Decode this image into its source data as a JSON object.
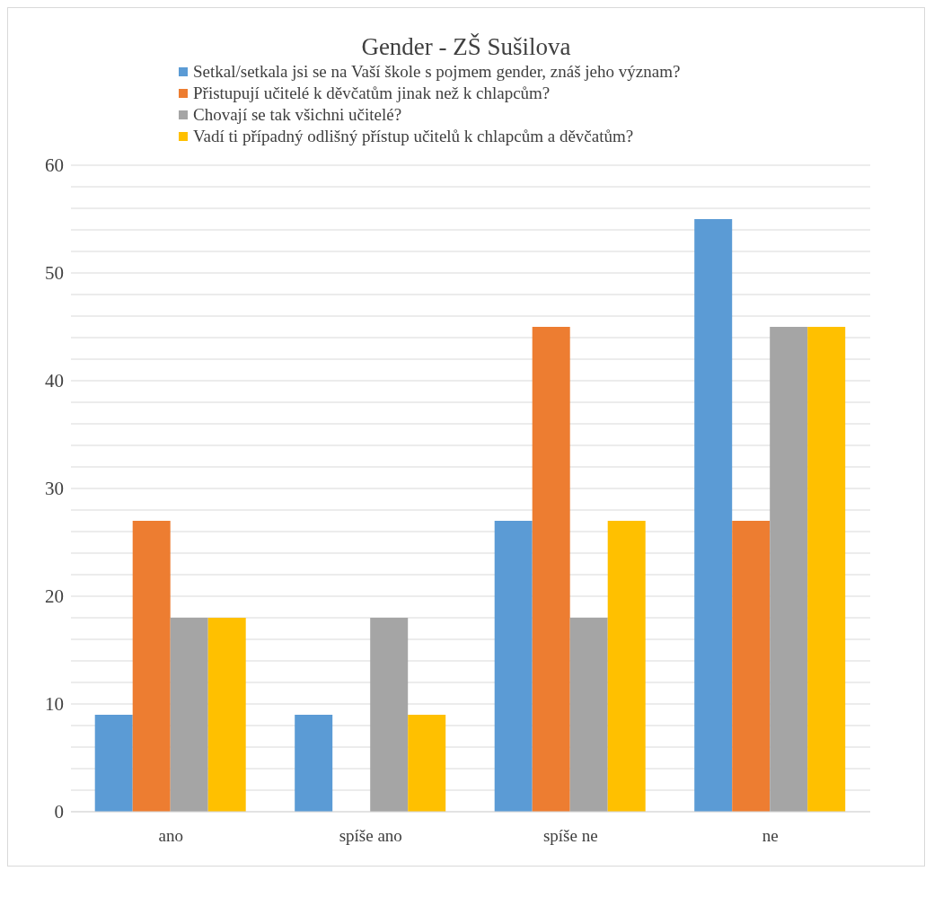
{
  "chart_data": {
    "type": "bar",
    "title": "Gender - ZŠ Sušilova",
    "categories": [
      "ano",
      "spíše ano",
      "spíše ne",
      "ne"
    ],
    "series": [
      {
        "name": "Setkal/setkala jsi se na Vaší škole s pojmem gender, znáš jeho význam?",
        "color": "#5b9bd5",
        "values": [
          9,
          9,
          27,
          55
        ]
      },
      {
        "name": "Přistupují učitelé k děvčatům jinak než k chlapcům?",
        "color": "#ed7d31",
        "values": [
          27,
          0,
          45,
          27
        ]
      },
      {
        "name": "Chovají se tak všichni učitelé?",
        "color": "#a5a5a5",
        "values": [
          18,
          18,
          18,
          45
        ]
      },
      {
        "name": "Vadí ti případný odlišný přístup učitelů k chlapcům a děvčatům?",
        "color": "#ffc000",
        "values": [
          18,
          9,
          27,
          45
        ]
      }
    ],
    "ylim": [
      0,
      60
    ],
    "yticks": [
      0,
      {
        "value": 2,
        "label": null
      },
      {
        "value": 4,
        "label": null
      },
      {
        "value": 6,
        "label": null
      },
      {
        "value": 8,
        "label": null
      },
      10,
      {
        "value": 12,
        "label": null
      },
      {
        "value": 14,
        "label": null
      },
      {
        "value": 16,
        "label": null
      },
      {
        "value": 18,
        "label": null
      },
      20,
      {
        "value": 22,
        "label": null
      },
      {
        "value": 24,
        "label": null
      },
      {
        "value": 26,
        "label": null
      },
      {
        "value": 28,
        "label": null
      },
      30,
      {
        "value": 32,
        "label": null
      },
      {
        "value": 34,
        "label": null
      },
      {
        "value": 36,
        "label": null
      },
      {
        "value": 38,
        "label": null
      },
      40,
      {
        "value": 42,
        "label": null
      },
      {
        "value": 44,
        "label": null
      },
      {
        "value": 46,
        "label": null
      },
      {
        "value": 48,
        "label": null
      },
      50,
      {
        "value": 52,
        "label": null
      },
      {
        "value": 54,
        "label": null
      },
      {
        "value": 56,
        "label": null
      },
      {
        "value": 58,
        "label": null
      },
      60
    ],
    "grid": "y",
    "legend": "top"
  }
}
